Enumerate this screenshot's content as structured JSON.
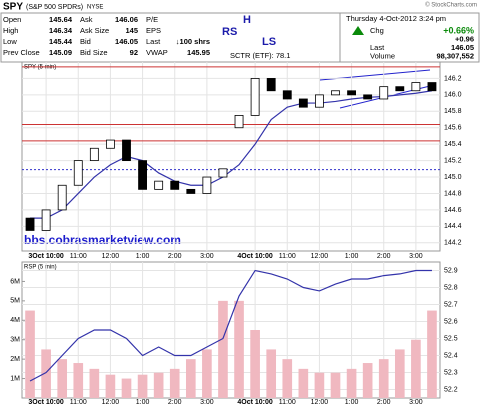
{
  "header": {
    "symbol": "SPY",
    "name": "(S&P 500 SPDRs)",
    "exchange": "NYSE",
    "copyright": "© StockCharts.com",
    "quote": [
      [
        [
          "Open",
          "145.64"
        ],
        [
          "High",
          "146.34"
        ],
        [
          "Low",
          "145.44"
        ],
        [
          "Prev Close",
          "145.09"
        ]
      ],
      [
        [
          "Ask",
          "146.06"
        ],
        [
          "Ask Size",
          "145"
        ],
        [
          "Bid",
          "146.05"
        ],
        [
          "Bid Size",
          "92"
        ]
      ],
      [
        [
          "P/E"
        ],
        [
          "EPS"
        ],
        [
          "Last",
          "↓100 shrs"
        ],
        [
          "VWAP",
          "145.95"
        ]
      ]
    ],
    "date": "Thursday  4-Oct-2012  3:24 pm",
    "summary": [
      [
        "Chg",
        "+0.66%"
      ],
      [
        "",
        "+0.96"
      ],
      [
        "Last",
        "146.05"
      ],
      [
        "Volume",
        "98,307,552"
      ]
    ]
  },
  "chart_data": [
    {
      "type": "candlestick",
      "title": "SPY (5 min)",
      "annotations": [
        "RS",
        "H",
        "LS",
        "SCTR (ETF): 78.1",
        "bbs.cobrasmarketview.com"
      ],
      "categories": [
        null,
        "3Oct 10:00",
        null,
        "11:00",
        null,
        "12:00",
        null,
        "1:00",
        null,
        "2:00",
        null,
        "3:00",
        null,
        null,
        "4Oct 10:00",
        null,
        "11:00",
        null,
        "12:00",
        null,
        "1:00",
        null,
        "2:00",
        null,
        "3:00",
        null
      ],
      "open": [
        144.5,
        144.35,
        144.6,
        144.9,
        145.2,
        145.35,
        145.45,
        145.2,
        144.85,
        144.95,
        144.85,
        144.8,
        145.0,
        145.6,
        145.75,
        146.2,
        146.05,
        145.95,
        145.85,
        146.0,
        146.05,
        146.0,
        145.95,
        146.1,
        146.05,
        146.15
      ],
      "close": [
        144.35,
        144.6,
        144.9,
        145.2,
        145.35,
        145.45,
        145.2,
        144.85,
        144.95,
        144.85,
        144.8,
        145.0,
        145.1,
        145.75,
        146.2,
        146.05,
        145.95,
        145.85,
        146.0,
        146.05,
        146.0,
        145.95,
        146.1,
        146.05,
        146.15,
        146.05
      ],
      "series": [
        {
          "color": "#3333aa",
          "values": [
            144.5,
            144.5,
            144.6,
            144.8,
            145.0,
            145.15,
            145.25,
            145.2,
            145.05,
            144.95,
            144.9,
            144.9,
            145.0,
            145.15,
            145.4,
            145.7,
            145.85,
            145.9,
            145.9,
            145.92,
            145.95,
            145.97,
            145.98,
            146.0,
            146.02,
            146.05
          ]
        }
      ],
      "levels": [
        {
          "value": 146.34,
          "color": "#cc3333"
        },
        {
          "value": 145.64,
          "color": "#cc3333"
        },
        {
          "value": 145.44,
          "color": "#cc3333"
        },
        {
          "value": 145.09,
          "color": "#3333cc"
        }
      ],
      "ylim": [
        144.1,
        146.4
      ],
      "yticks": [
        144.2,
        144.4,
        144.6,
        144.8,
        {
          "value": 145,
          "label": "145.0"
        },
        145.2,
        145.4,
        145.6,
        145.8,
        {
          "value": 146,
          "label": "146.0"
        },
        146.2
      ],
      "grid": true
    },
    {
      "type": "line",
      "title": "RSP (5 min)",
      "categories": [
        null,
        "3Oct 10:00",
        null,
        "11:00",
        null,
        "12:00",
        null,
        "1:00",
        null,
        "2:00",
        null,
        "3:00",
        null,
        null,
        "4Oct 10:00",
        null,
        "11:00",
        null,
        "12:00",
        null,
        "1:00",
        null,
        "2:00",
        null,
        "3:00",
        null
      ],
      "series": [
        {
          "color": "#3333aa",
          "values": [
            52.25,
            52.3,
            52.4,
            52.5,
            52.55,
            52.55,
            52.5,
            52.4,
            52.45,
            52.4,
            52.4,
            52.45,
            52.5,
            52.75,
            52.9,
            52.88,
            52.85,
            52.8,
            52.78,
            52.82,
            52.85,
            52.85,
            52.87,
            52.88,
            52.9,
            52.9
          ]
        }
      ],
      "volume": {
        "color": "#f0b8c0",
        "values": [
          4500000,
          2500000,
          2000000,
          1800000,
          1500000,
          1200000,
          1000000,
          1200000,
          1300000,
          1500000,
          2000000,
          2500000,
          5000000,
          5000000,
          3500000,
          2500000,
          2000000,
          1500000,
          1300000,
          1300000,
          1500000,
          1800000,
          2000000,
          2500000,
          3000000,
          4500000
        ],
        "ylim": [
          0,
          7000000
        ],
        "yticks": [
          {
            "value": 1000000,
            "label": "1M"
          },
          {
            "value": 2000000,
            "label": "2M"
          },
          {
            "value": 3000000,
            "label": "3M"
          },
          {
            "value": 4000000,
            "label": "4M"
          },
          {
            "value": 5000000,
            "label": "5M"
          },
          {
            "value": 6000000,
            "label": "6M"
          }
        ]
      },
      "ylim": [
        52.15,
        52.95
      ],
      "yticks": [
        52.2,
        52.3,
        52.4,
        52.5,
        52.6,
        52.7,
        52.8,
        52.9
      ],
      "grid": true
    }
  ]
}
